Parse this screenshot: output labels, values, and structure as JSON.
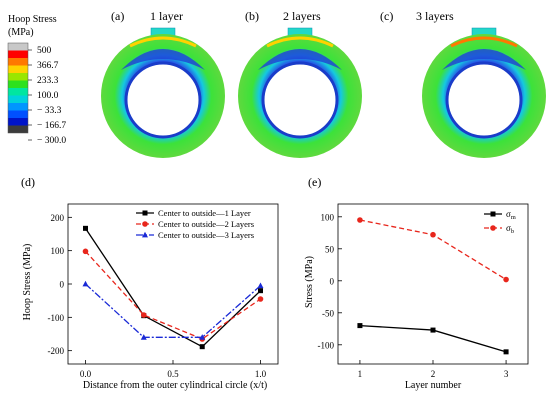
{
  "colorbar": {
    "title_line1": "Hoop Stress",
    "title_line2": "(MPa)",
    "labels": [
      "500",
      "366.7",
      "233.3",
      "100.0",
      "− 33.3",
      "− 166.7",
      "− 300.0"
    ],
    "colors": [
      "#c8c8c8",
      "#ff0000",
      "#ff7800",
      "#ffd200",
      "#9ae600",
      "#2de11e",
      "#00e6a0",
      "#00d2dc",
      "#0096ff",
      "#0050ff",
      "#0014c8",
      "#3c3c3c"
    ]
  },
  "top_panels": [
    {
      "tag": "(a)",
      "label": "1 layer"
    },
    {
      "tag": "(b)",
      "label": "2 layers"
    },
    {
      "tag": "(c)",
      "label": "3 layers"
    }
  ],
  "chart_data": [
    {
      "panel": "(d)",
      "type": "line",
      "xlabel": "Distance from the outer cylindrical circle  (x/t)",
      "ylabel": "Hoop Stress (MPa)",
      "xlim": [
        -0.1,
        1.1
      ],
      "ylim": [
        -240,
        240
      ],
      "xticks": [
        "0.0",
        "0.5",
        "1.0"
      ],
      "xtick_values": [
        0,
        0.5,
        1.0
      ],
      "yticks": [
        "200",
        "100",
        "0",
        "-100",
        "-200"
      ],
      "ytick_values": [
        200,
        100,
        0,
        -100,
        -200
      ],
      "x": [
        0,
        0.333,
        0.667,
        1.0
      ],
      "series": [
        {
          "name": "Center to outside—1 Layer",
          "values": [
            167,
            -95,
            -188,
            -20
          ],
          "color": "#000000",
          "dash": "",
          "marker": "square"
        },
        {
          "name": "Center to outside—2 Layers",
          "values": [
            98,
            -93,
            -165,
            -45
          ],
          "color": "#e8261c",
          "dash": "5,3",
          "marker": "circle"
        },
        {
          "name": "Center to outside—3 Layers",
          "values": [
            0,
            -160,
            -160,
            -5
          ],
          "color": "#1a2ad6",
          "dash": "7,2,2,2",
          "marker": "triangle"
        }
      ],
      "legend_position": "top-right"
    },
    {
      "panel": "(e)",
      "type": "line",
      "xlabel": "Layer number",
      "ylabel": "Stress (MPa)",
      "xlim": [
        0.7,
        3.3
      ],
      "ylim": [
        -130,
        120
      ],
      "xticks": [
        "1",
        "2",
        "3"
      ],
      "xtick_values": [
        1,
        2,
        3
      ],
      "yticks": [
        "100",
        "50",
        "0",
        "-50",
        "-100"
      ],
      "ytick_values": [
        100,
        50,
        0,
        -50,
        -100
      ],
      "x": [
        1,
        2,
        3
      ],
      "series": [
        {
          "name": "σ",
          "sub": "m",
          "values": [
            -70,
            -77,
            -111
          ],
          "color": "#000000",
          "dash": "",
          "marker": "square"
        },
        {
          "name": "σ",
          "sub": "b",
          "values": [
            95,
            72,
            2
          ],
          "color": "#e8261c",
          "dash": "5,3",
          "marker": "circle"
        }
      ],
      "legend_position": "top-right"
    }
  ]
}
